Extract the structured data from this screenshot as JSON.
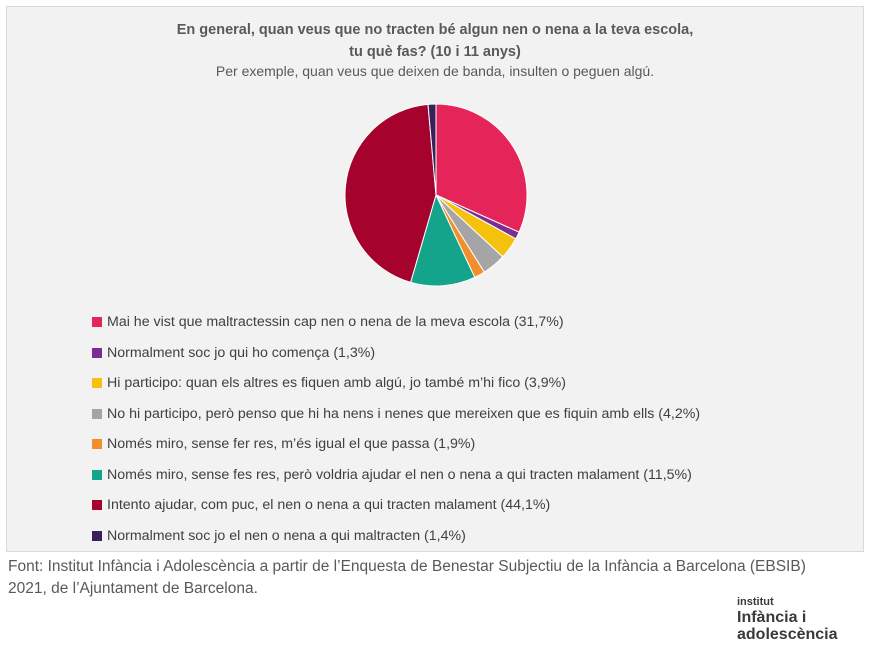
{
  "chart_data": {
    "type": "pie",
    "title": "En general, quan veus que no tracten bé algun nen o nena a la teva escola, tu què fas? (10 i 11 anys)",
    "title_line1": "En general, quan veus que no tracten bé algun nen o nena a la teva escola,",
    "title_line2": "tu què fas? (10 i 11 anys)",
    "subtitle": "Per exemple, quan veus que deixen de banda, insulten o peguen algú.",
    "legend_position": "bottom",
    "slices": [
      {
        "label": "Mai he vist que maltractessin cap nen o nena de la meva escola (31,7%)",
        "value": 31.7,
        "color": "#e5245a"
      },
      {
        "label": "Normalment soc jo qui ho comença (1,3%)",
        "value": 1.3,
        "color": "#7b2d91"
      },
      {
        "label": "Hi participo: quan els altres es fiquen amb algú, jo també m’hi fico (3,9%)",
        "value": 3.9,
        "color": "#f4c20d"
      },
      {
        "label": "No hi participo, però penso que hi ha nens i nenes que mereixen que es fiquin amb ells (4,2%)",
        "value": 4.2,
        "color": "#a5a5a5"
      },
      {
        "label": "Només miro, sense fer res, m’és igual el que passa (1,9%)",
        "value": 1.9,
        "color": "#f28e2b"
      },
      {
        "label": "Només miro, sense fes res, però voldria ajudar el nen o nena a qui tracten malament (11,5%)",
        "value": 11.5,
        "color": "#14a38b"
      },
      {
        "label": "Intento ajudar, com puc, el nen o nena a qui tracten malament (44,1%)",
        "value": 44.1,
        "color": "#a5032e"
      },
      {
        "label": "Normalment soc jo el nen o nena a qui maltracten (1,4%)",
        "value": 1.4,
        "color": "#3b1f5a"
      }
    ]
  },
  "source": "Font: Institut Infància i Adolescència a partir de l’Enquesta de Benestar Subjectiu de la Infància a Barcelona (EBSIB) 2021, de l’Ajuntament de Barcelona.",
  "logo": {
    "line1": "institut",
    "line2": "Infància i",
    "line3": "adolescència"
  }
}
